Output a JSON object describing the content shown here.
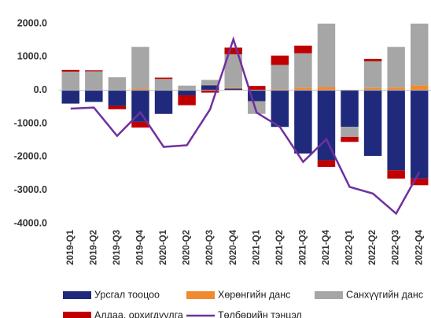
{
  "chart_data": {
    "type": "bar",
    "categories": [
      "2019-Q1",
      "2019-Q2",
      "2019-Q3",
      "2019-Q4",
      "2020-Q1",
      "2020-Q2",
      "2020-Q3",
      "2020-Q4",
      "2021-Q1",
      "2021-Q2",
      "2021-Q3",
      "2021-Q4",
      "2022-Q1",
      "2022-Q2",
      "2022-Q3",
      "2022-Q4"
    ],
    "series": [
      {
        "name": "Урсгал тооцоо",
        "color": "#1f2a7c",
        "values": [
          -400,
          -350,
          -470,
          -950,
          -710,
          -150,
          150,
          50,
          -330,
          -1100,
          -1900,
          -2100,
          -1100,
          -1970,
          -2400,
          -2650
        ]
      },
      {
        "name": "Хөрөнгийн данс",
        "color": "#f08a30",
        "values": [
          10,
          10,
          10,
          50,
          10,
          10,
          10,
          30,
          10,
          30,
          80,
          100,
          10,
          70,
          80,
          150
        ]
      },
      {
        "name": "Санхүүгийн данс",
        "color": "#a6a6a6",
        "values": [
          550,
          560,
          380,
          1250,
          330,
          130,
          150,
          1000,
          -380,
          730,
          1030,
          1900,
          -300,
          800,
          1220,
          1850
        ]
      },
      {
        "name": "Алдаа, орхигдуулга",
        "color": "#c00000",
        "values": [
          50,
          30,
          -100,
          -170,
          40,
          -300,
          -70,
          200,
          120,
          280,
          230,
          -200,
          -150,
          70,
          -250,
          -200
        ]
      },
      {
        "name": "Төлбөрийн тэнцэл",
        "color": "#7030a0",
        "type": "line",
        "values": [
          -550,
          -520,
          -1370,
          -660,
          -1700,
          -1650,
          -570,
          1530,
          -670,
          -1100,
          -2150,
          -1470,
          -2900,
          -3100,
          -3700,
          -2450
        ]
      }
    ],
    "ylim": [
      -4000,
      2000
    ],
    "yticks": [
      {
        "value": 2000,
        "label": "2000.0"
      },
      {
        "value": 1000,
        "label": "1000.0"
      },
      {
        "value": 0,
        "label": "0.0"
      },
      {
        "value": -1000,
        "label": "-1000.0"
      },
      {
        "value": -2000,
        "label": "-2000.0"
      },
      {
        "value": -3000,
        "label": "-3000.0"
      },
      {
        "value": -4000,
        "label": "-4000.0"
      }
    ]
  }
}
